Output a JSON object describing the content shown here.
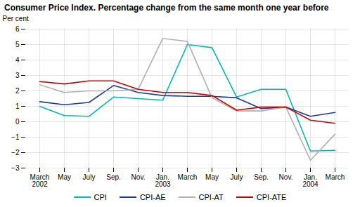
{
  "chart_data": {
    "type": "line",
    "title": "Consumer Price Index. Percentage change from the same month one year before",
    "ylabel": "Per cent",
    "categories": [
      "March\n2002",
      "May",
      "July",
      "Sep.",
      "Nov.",
      "Jan.\n2003",
      "March",
      "May",
      "July",
      "Sep.",
      "Nov.",
      "Jan.\n2004",
      "March"
    ],
    "series": [
      {
        "name": "CPI",
        "color": "#00b8b8",
        "values": [
          1.0,
          0.4,
          0.35,
          1.6,
          1.5,
          1.4,
          5.0,
          4.8,
          1.6,
          2.1,
          2.1,
          -1.9,
          -1.85
        ]
      },
      {
        "name": "CPI-AE",
        "color": "#1a3a9e",
        "values": [
          1.3,
          1.1,
          1.25,
          2.35,
          1.9,
          1.7,
          1.65,
          1.65,
          1.55,
          0.85,
          0.95,
          0.35,
          0.6
        ]
      },
      {
        "name": "CPI-AT",
        "color": "#b0b0b0",
        "values": [
          2.4,
          1.9,
          2.0,
          2.0,
          2.1,
          5.4,
          5.2,
          1.55,
          0.7,
          0.7,
          0.95,
          -2.5,
          -0.8
        ]
      },
      {
        "name": "CPI-ATE",
        "color": "#cc0000",
        "values": [
          2.6,
          2.45,
          2.65,
          2.65,
          2.1,
          1.9,
          1.9,
          1.7,
          0.75,
          0.95,
          0.95,
          0.1,
          -0.1
        ]
      }
    ],
    "ylim": [
      -3,
      6
    ],
    "yticks": [
      -3,
      -2,
      -1,
      0,
      1,
      2,
      3,
      4,
      5,
      6
    ],
    "grid": true,
    "legend": "bottom"
  }
}
